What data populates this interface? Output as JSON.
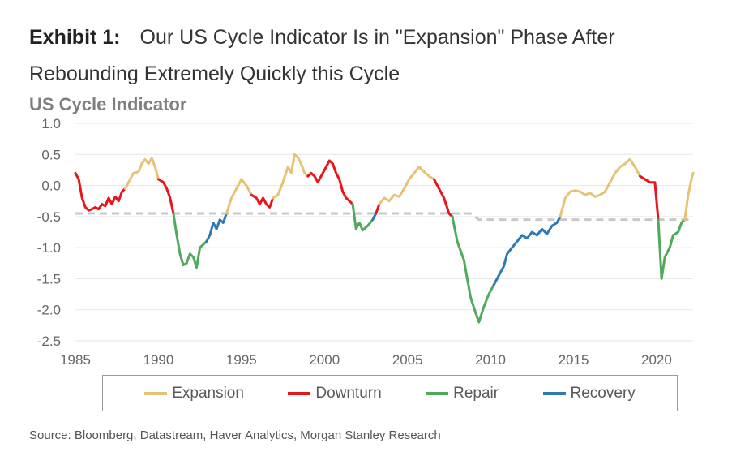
{
  "header": {
    "exhibit_label": "Exhibit 1:",
    "title_line1": "Our US Cycle Indicator Is in \"Expansion\" Phase After",
    "title_line2": "Rebounding Extremely Quickly this Cycle"
  },
  "source": "Source: Bloomberg, Datastream, Haver Analytics, Morgan Stanley Research",
  "chart_data": {
    "type": "line",
    "title": "US Cycle Indicator",
    "xlabel": "",
    "ylabel": "",
    "xlim": [
      1985,
      2022.2
    ],
    "ylim": [
      -2.5,
      1.0
    ],
    "x_ticks": [
      "1985",
      "1990",
      "1995",
      "2000",
      "2005",
      "2010",
      "2015",
      "2020"
    ],
    "y_ticks": [
      "1.0",
      "0.5",
      "0.0",
      "-0.5",
      "-1.0",
      "-1.5",
      "-2.0",
      "-2.5"
    ],
    "grid": "horizontal",
    "legend_position": "bottom",
    "colors": {
      "Expansion": "#e6c274",
      "Downturn": "#e8151b",
      "Repair": "#4faa5d",
      "Recovery": "#2e7bb3",
      "threshold": "#c8c8c8",
      "grid": "#e6e6e6"
    },
    "legend": [
      "Expansion",
      "Downturn",
      "Repair",
      "Recovery"
    ],
    "threshold": [
      {
        "x": 1985.0,
        "y": -0.45
      },
      {
        "x": 2008.8,
        "y": -0.45
      },
      {
        "x": 2009.3,
        "y": -0.55
      },
      {
        "x": 2022.2,
        "y": -0.55
      }
    ],
    "series": [
      {
        "name": "Downturn",
        "points": [
          [
            1985.0,
            0.2
          ],
          [
            1985.2,
            0.1
          ],
          [
            1985.4,
            -0.2
          ],
          [
            1985.6,
            -0.35
          ],
          [
            1985.8,
            -0.4
          ],
          [
            1986.0,
            -0.38
          ],
          [
            1986.2,
            -0.35
          ],
          [
            1986.4,
            -0.38
          ],
          [
            1986.6,
            -0.3
          ],
          [
            1986.8,
            -0.33
          ],
          [
            1987.0,
            -0.2
          ],
          [
            1987.2,
            -0.3
          ],
          [
            1987.4,
            -0.18
          ],
          [
            1987.6,
            -0.25
          ],
          [
            1987.8,
            -0.1
          ],
          [
            1988.0,
            -0.05
          ]
        ]
      },
      {
        "name": "Expansion",
        "points": [
          [
            1988.0,
            -0.05
          ],
          [
            1988.2,
            0.05
          ],
          [
            1988.5,
            0.2
          ],
          [
            1988.8,
            0.22
          ],
          [
            1989.0,
            0.35
          ],
          [
            1989.2,
            0.42
          ],
          [
            1989.4,
            0.35
          ],
          [
            1989.6,
            0.44
          ],
          [
            1989.8,
            0.3
          ],
          [
            1990.0,
            0.1
          ]
        ]
      },
      {
        "name": "Downturn",
        "points": [
          [
            1990.0,
            0.1
          ],
          [
            1990.3,
            0.05
          ],
          [
            1990.5,
            -0.05
          ],
          [
            1990.7,
            -0.2
          ],
          [
            1990.9,
            -0.45
          ]
        ]
      },
      {
        "name": "Repair",
        "points": [
          [
            1990.9,
            -0.45
          ],
          [
            1991.1,
            -0.8
          ],
          [
            1991.3,
            -1.1
          ],
          [
            1991.5,
            -1.28
          ],
          [
            1991.7,
            -1.25
          ],
          [
            1991.9,
            -1.1
          ],
          [
            1992.1,
            -1.15
          ],
          [
            1992.3,
            -1.32
          ],
          [
            1992.5,
            -1.0
          ],
          [
            1992.7,
            -0.95
          ],
          [
            1992.9,
            -0.9
          ]
        ]
      },
      {
        "name": "Recovery",
        "points": [
          [
            1992.9,
            -0.9
          ],
          [
            1993.1,
            -0.8
          ],
          [
            1993.3,
            -0.6
          ],
          [
            1993.5,
            -0.7
          ],
          [
            1993.7,
            -0.55
          ],
          [
            1993.9,
            -0.6
          ],
          [
            1994.1,
            -0.45
          ]
        ]
      },
      {
        "name": "Expansion",
        "points": [
          [
            1994.1,
            -0.45
          ],
          [
            1994.4,
            -0.2
          ],
          [
            1994.7,
            -0.05
          ],
          [
            1995.0,
            0.1
          ],
          [
            1995.3,
            0.0
          ],
          [
            1995.6,
            -0.15
          ]
        ]
      },
      {
        "name": "Downturn",
        "points": [
          [
            1995.6,
            -0.15
          ],
          [
            1995.9,
            -0.2
          ],
          [
            1996.1,
            -0.3
          ],
          [
            1996.3,
            -0.2
          ],
          [
            1996.5,
            -0.3
          ],
          [
            1996.7,
            -0.35
          ],
          [
            1996.9,
            -0.2
          ]
        ]
      },
      {
        "name": "Expansion",
        "points": [
          [
            1996.9,
            -0.2
          ],
          [
            1997.2,
            -0.15
          ],
          [
            1997.5,
            0.05
          ],
          [
            1997.8,
            0.3
          ],
          [
            1998.0,
            0.2
          ],
          [
            1998.2,
            0.5
          ],
          [
            1998.4,
            0.45
          ],
          [
            1998.6,
            0.35
          ],
          [
            1998.8,
            0.2
          ],
          [
            1999.0,
            0.15
          ]
        ]
      },
      {
        "name": "Downturn",
        "points": [
          [
            1999.0,
            0.15
          ],
          [
            1999.2,
            0.2
          ],
          [
            1999.4,
            0.15
          ],
          [
            1999.6,
            0.05
          ],
          [
            1999.8,
            0.15
          ],
          [
            2000.0,
            0.25
          ],
          [
            2000.3,
            0.4
          ],
          [
            2000.5,
            0.35
          ],
          [
            2000.7,
            0.2
          ],
          [
            2000.9,
            0.1
          ],
          [
            2001.1,
            -0.1
          ],
          [
            2001.3,
            -0.2
          ],
          [
            2001.5,
            -0.25
          ],
          [
            2001.7,
            -0.3
          ]
        ]
      },
      {
        "name": "Repair",
        "points": [
          [
            2001.7,
            -0.3
          ],
          [
            2001.9,
            -0.7
          ],
          [
            2002.1,
            -0.6
          ],
          [
            2002.3,
            -0.72
          ],
          [
            2002.6,
            -0.65
          ],
          [
            2002.9,
            -0.55
          ]
        ]
      },
      {
        "name": "Recovery",
        "points": [
          [
            2002.9,
            -0.55
          ],
          [
            2003.1,
            -0.45
          ]
        ]
      },
      {
        "name": "Downturn",
        "points": [
          [
            2003.1,
            -0.45
          ],
          [
            2003.3,
            -0.3
          ]
        ]
      },
      {
        "name": "Expansion",
        "points": [
          [
            2003.3,
            -0.3
          ],
          [
            2003.6,
            -0.2
          ],
          [
            2003.9,
            -0.25
          ],
          [
            2004.2,
            -0.15
          ],
          [
            2004.5,
            -0.18
          ],
          [
            2004.8,
            -0.05
          ],
          [
            2005.1,
            0.1
          ],
          [
            2005.4,
            0.2
          ],
          [
            2005.7,
            0.3
          ],
          [
            2006.0,
            0.22
          ],
          [
            2006.3,
            0.15
          ],
          [
            2006.6,
            0.1
          ]
        ]
      },
      {
        "name": "Downturn",
        "points": [
          [
            2006.6,
            0.1
          ],
          [
            2006.9,
            -0.05
          ],
          [
            2007.2,
            -0.2
          ],
          [
            2007.5,
            -0.45
          ],
          [
            2007.7,
            -0.5
          ]
        ]
      },
      {
        "name": "Repair",
        "points": [
          [
            2007.7,
            -0.5
          ],
          [
            2008.0,
            -0.9
          ],
          [
            2008.4,
            -1.2
          ],
          [
            2008.8,
            -1.8
          ],
          [
            2009.1,
            -2.05
          ],
          [
            2009.3,
            -2.2
          ],
          [
            2009.6,
            -1.95
          ],
          [
            2009.9,
            -1.75
          ],
          [
            2010.2,
            -1.6
          ]
        ]
      },
      {
        "name": "Recovery",
        "points": [
          [
            2010.2,
            -1.6
          ],
          [
            2010.5,
            -1.45
          ],
          [
            2010.8,
            -1.3
          ],
          [
            2011.0,
            -1.1
          ],
          [
            2011.3,
            -1.0
          ],
          [
            2011.6,
            -0.9
          ],
          [
            2011.9,
            -0.8
          ],
          [
            2012.2,
            -0.85
          ],
          [
            2012.5,
            -0.75
          ],
          [
            2012.8,
            -0.8
          ],
          [
            2013.1,
            -0.7
          ],
          [
            2013.4,
            -0.78
          ],
          [
            2013.7,
            -0.65
          ],
          [
            2014.0,
            -0.6
          ],
          [
            2014.2,
            -0.5
          ]
        ]
      },
      {
        "name": "Expansion",
        "points": [
          [
            2014.2,
            -0.5
          ],
          [
            2014.5,
            -0.2
          ],
          [
            2014.8,
            -0.1
          ],
          [
            2015.1,
            -0.08
          ],
          [
            2015.4,
            -0.1
          ],
          [
            2015.7,
            -0.15
          ],
          [
            2016.0,
            -0.12
          ],
          [
            2016.3,
            -0.18
          ],
          [
            2016.6,
            -0.15
          ],
          [
            2016.9,
            -0.1
          ],
          [
            2017.2,
            0.05
          ],
          [
            2017.5,
            0.2
          ],
          [
            2017.8,
            0.3
          ],
          [
            2018.1,
            0.35
          ],
          [
            2018.4,
            0.42
          ],
          [
            2018.7,
            0.3
          ],
          [
            2019.0,
            0.15
          ]
        ]
      },
      {
        "name": "Downturn",
        "points": [
          [
            2019.0,
            0.15
          ],
          [
            2019.3,
            0.1
          ],
          [
            2019.6,
            0.05
          ],
          [
            2019.9,
            0.05
          ],
          [
            2020.1,
            -0.55
          ]
        ]
      },
      {
        "name": "Repair",
        "points": [
          [
            2020.1,
            -0.55
          ],
          [
            2020.3,
            -1.5
          ],
          [
            2020.5,
            -1.15
          ],
          [
            2020.8,
            -1.0
          ],
          [
            2021.0,
            -0.8
          ],
          [
            2021.3,
            -0.75
          ],
          [
            2021.5,
            -0.6
          ],
          [
            2021.7,
            -0.55
          ]
        ]
      },
      {
        "name": "Expansion",
        "points": [
          [
            2021.7,
            -0.55
          ],
          [
            2021.9,
            -0.15
          ],
          [
            2022.1,
            0.1
          ],
          [
            2022.2,
            0.2
          ]
        ]
      }
    ]
  }
}
